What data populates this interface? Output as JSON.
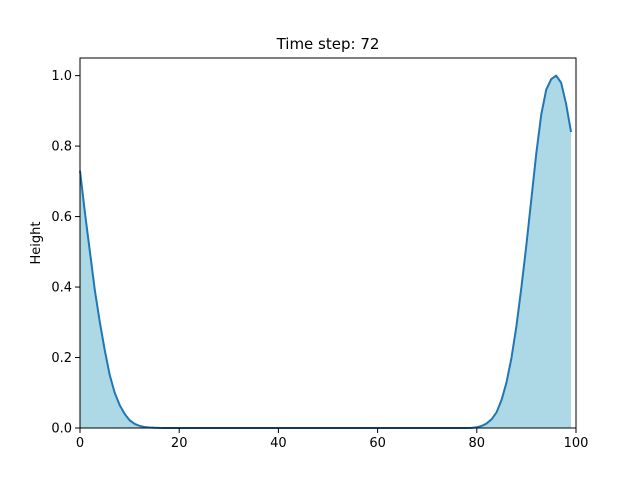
{
  "chart_data": {
    "type": "area",
    "title": "Time step: 72",
    "xlabel": "",
    "ylabel": "Height",
    "xlim": [
      0,
      100
    ],
    "ylim": [
      0,
      1.05
    ],
    "xticks": [
      0,
      20,
      40,
      60,
      80,
      100
    ],
    "yticks": [
      0.0,
      0.2,
      0.4,
      0.6,
      0.8,
      1.0
    ],
    "xtick_labels": [
      "0",
      "20",
      "40",
      "60",
      "80",
      "100"
    ],
    "ytick_labels": [
      "0.0",
      "0.2",
      "0.4",
      "0.6",
      "0.8",
      "1.0"
    ],
    "grid": false,
    "line_color": "#1f77b4",
    "fill_color": "#add8e6",
    "x": [
      0,
      1,
      2,
      3,
      4,
      5,
      6,
      7,
      8,
      9,
      10,
      11,
      12,
      13,
      14,
      15,
      16,
      17,
      18,
      19,
      20,
      21,
      22,
      23,
      24,
      25,
      26,
      27,
      28,
      29,
      30,
      31,
      32,
      33,
      34,
      35,
      36,
      37,
      38,
      39,
      40,
      41,
      42,
      43,
      44,
      45,
      46,
      47,
      48,
      49,
      50,
      51,
      52,
      53,
      54,
      55,
      56,
      57,
      58,
      59,
      60,
      61,
      62,
      63,
      64,
      65,
      66,
      67,
      68,
      69,
      70,
      71,
      72,
      73,
      74,
      75,
      76,
      77,
      78,
      79,
      80,
      81,
      82,
      83,
      84,
      85,
      86,
      87,
      88,
      89,
      90,
      91,
      92,
      93,
      94,
      95,
      96,
      97,
      98,
      99
    ],
    "y": [
      0.73,
      0.61,
      0.5,
      0.39,
      0.3,
      0.22,
      0.15,
      0.1,
      0.065,
      0.04,
      0.022,
      0.012,
      0.006,
      0.003,
      0.0014,
      0.0006,
      0.0002,
      0.0001,
      0,
      0,
      0,
      0,
      0,
      0,
      0,
      0,
      0,
      0,
      0,
      0,
      0,
      0,
      0,
      0,
      0,
      0,
      0,
      0,
      0,
      0,
      0,
      0,
      0,
      0,
      0,
      0,
      0,
      0,
      0,
      0,
      0,
      0,
      0,
      0,
      0,
      0,
      0,
      0,
      0,
      0,
      0,
      0,
      0,
      0,
      0,
      0,
      0,
      0,
      0,
      0,
      0,
      0,
      0,
      0,
      0,
      0,
      0,
      0,
      0,
      0.0005,
      0.002,
      0.006,
      0.013,
      0.025,
      0.045,
      0.08,
      0.13,
      0.2,
      0.29,
      0.4,
      0.52,
      0.65,
      0.78,
      0.89,
      0.96,
      0.99,
      1.0,
      0.98,
      0.92,
      0.84
    ]
  }
}
